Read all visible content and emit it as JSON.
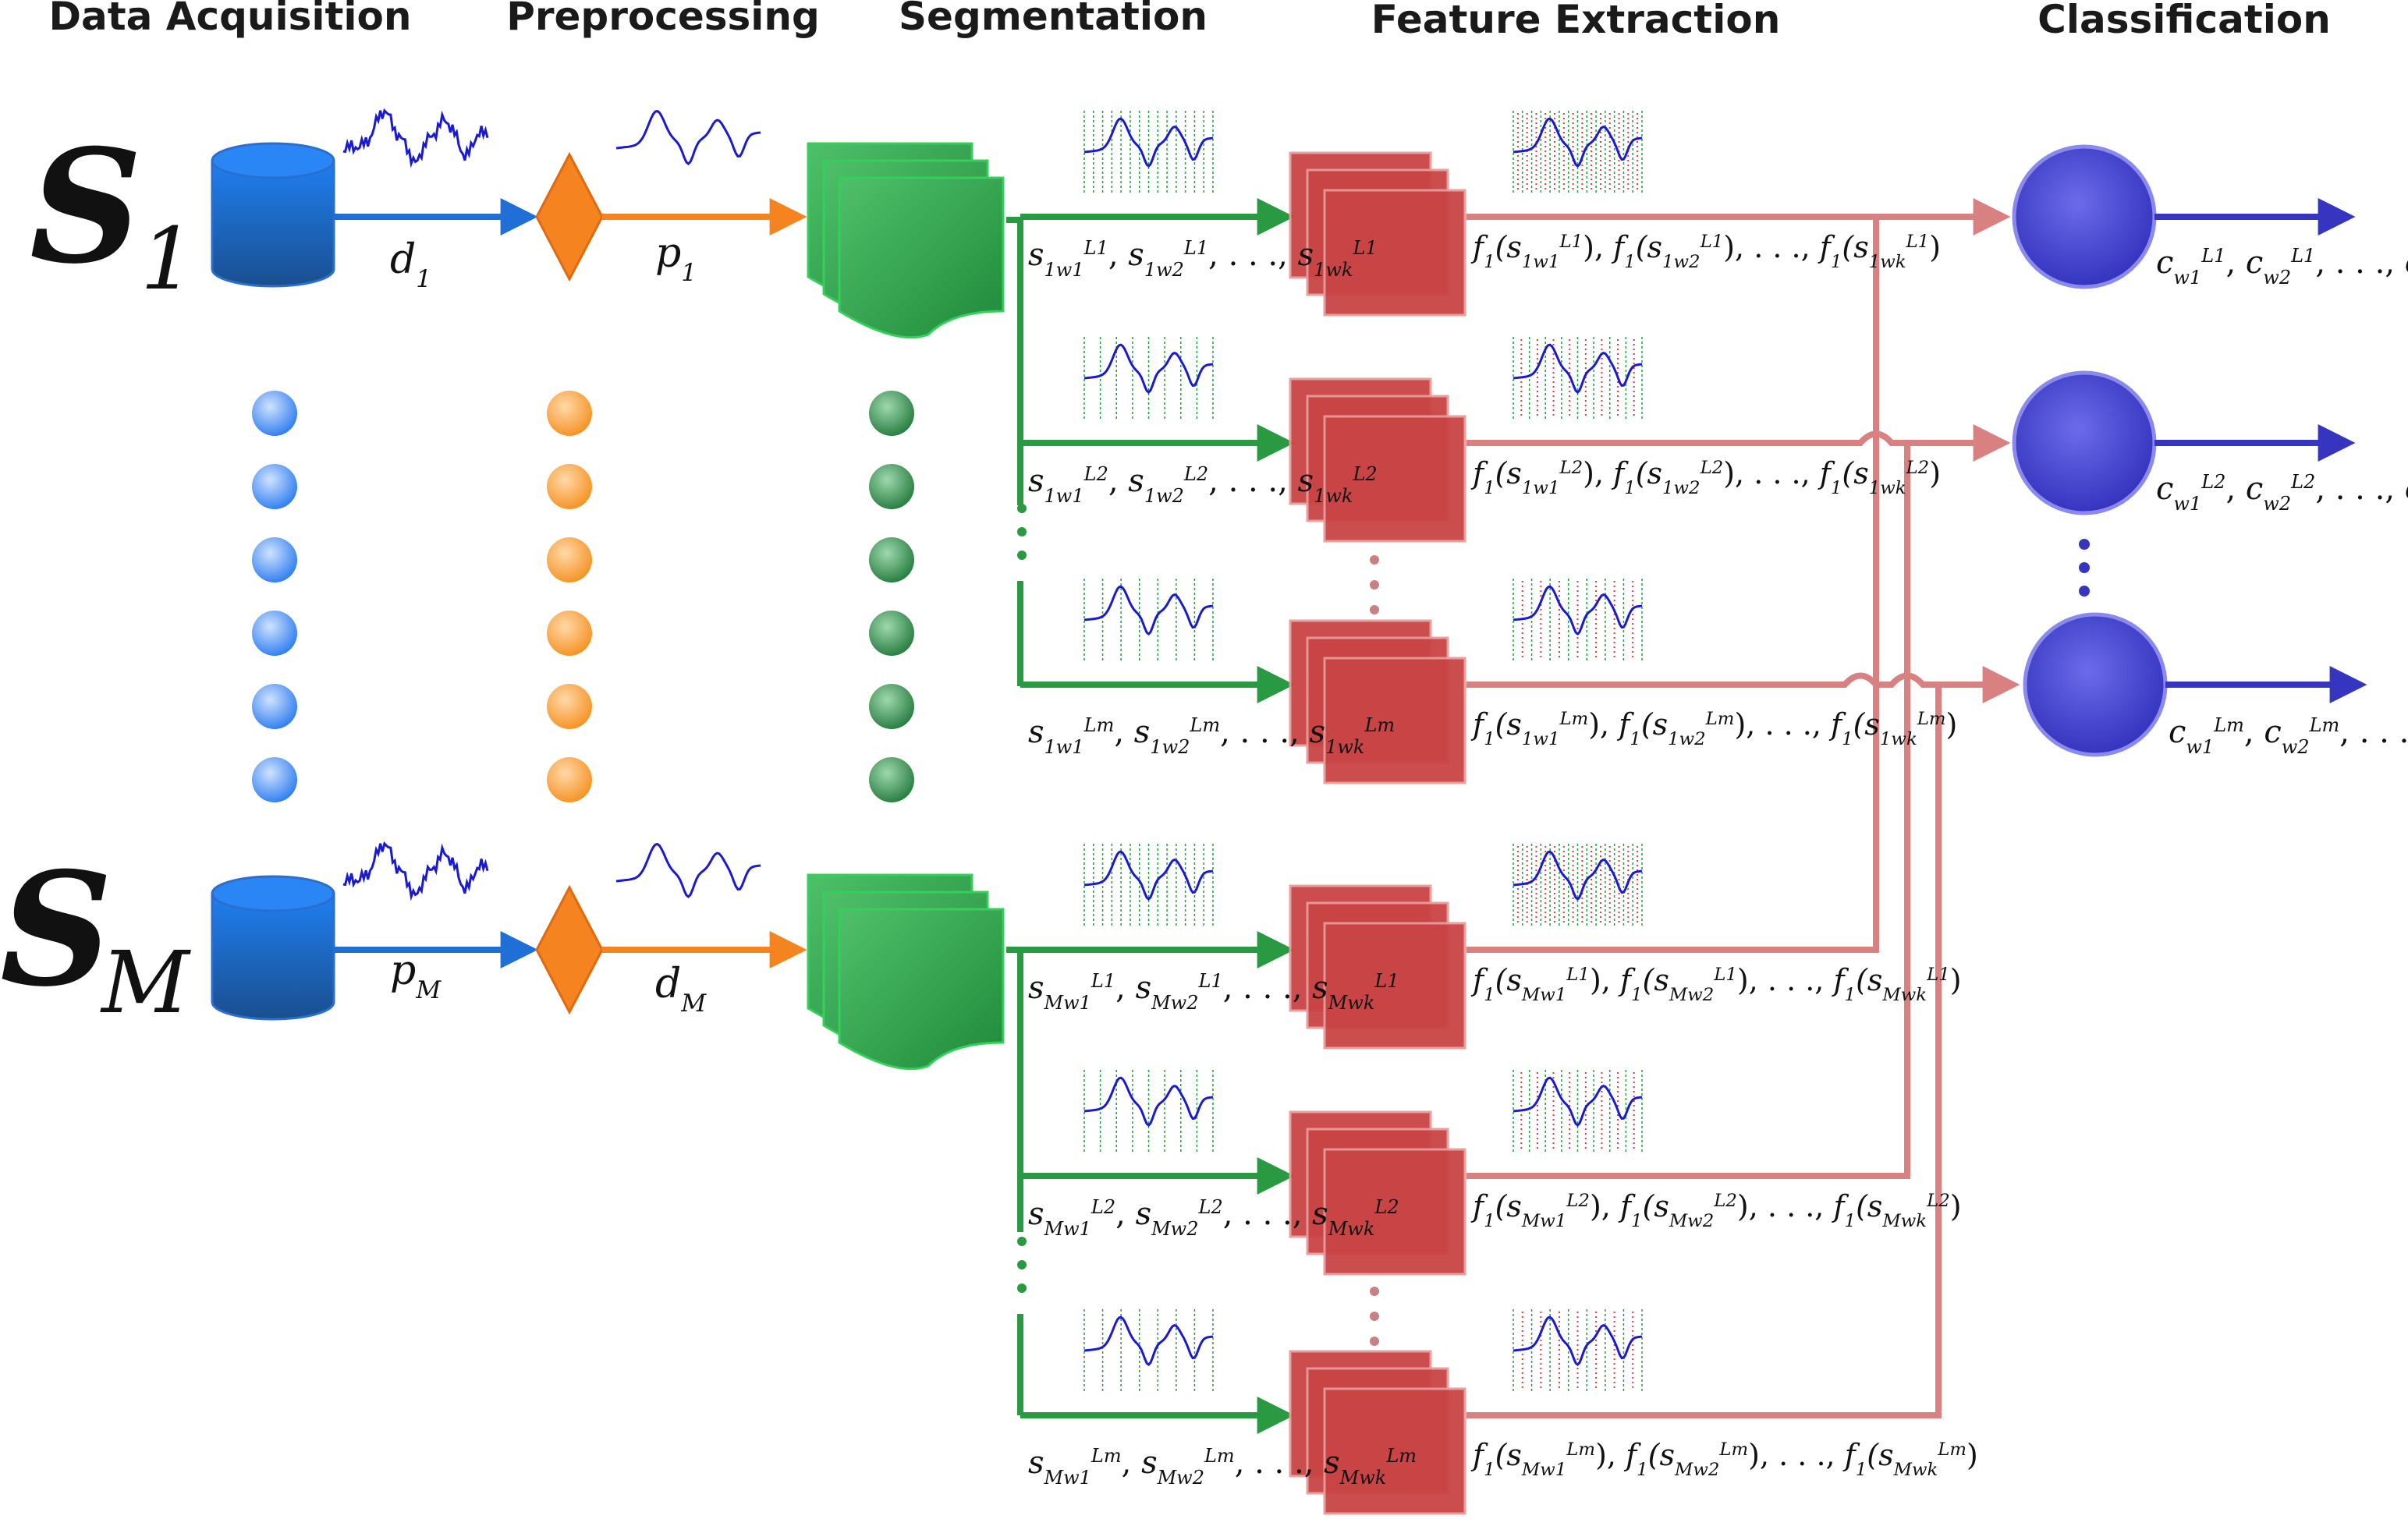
{
  "stages": [
    "Data Acquisition",
    "Preprocessing",
    "Segmentation",
    "Feature Extraction",
    "Classification"
  ],
  "subjects": [
    {
      "symbol": "S",
      "index": "1",
      "raw_label": "d",
      "raw_sub": "1",
      "pre_label": "p",
      "pre_sub": "1"
    },
    {
      "symbol": "S",
      "index": "M",
      "raw_label": "p",
      "raw_sub": "M",
      "pre_label": "d",
      "pre_sub": "M"
    }
  ],
  "segment_rows": [
    {
      "subj": "1",
      "lev": "1"
    },
    {
      "subj": "1",
      "lev": "2"
    },
    {
      "subj": "1",
      "lev": "m"
    },
    {
      "subj": "M",
      "lev": "1"
    },
    {
      "subj": "M",
      "lev": "2"
    },
    {
      "subj": "M",
      "lev": "m"
    }
  ],
  "feature_func": "f",
  "feature_func_sub": "1",
  "classifier_outputs": [
    {
      "lev": "1"
    },
    {
      "lev": "2"
    },
    {
      "lev": "m"
    }
  ],
  "labels": {
    "seg_symbol": "s",
    "class_symbol": "c",
    "level_symbol": "L",
    "window_symbol": "w",
    "window_subs": [
      "1",
      "2",
      "k"
    ],
    "ellipsis": ". . .",
    "comma": ","
  },
  "colors": {
    "acquisition": "#1f6fd6",
    "preprocessing": "#f5831f",
    "segmentation": "#2a9a42",
    "feature": "#c94444",
    "feature_line": "#d98080",
    "classification": "#4444cc",
    "signal": "#1a1ad0"
  }
}
